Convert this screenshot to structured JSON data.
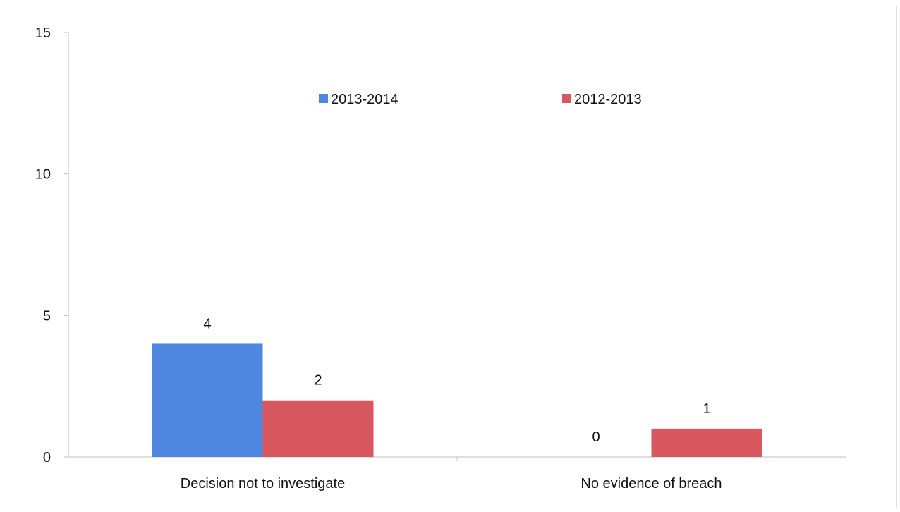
{
  "chart_data": {
    "type": "bar",
    "categories": [
      "Decision not to investigate",
      "No evidence of breach"
    ],
    "series": [
      {
        "name": "2013-2014",
        "values": [
          4,
          0
        ],
        "color": "#4f86df"
      },
      {
        "name": "2012-2013",
        "values": [
          2,
          1
        ],
        "color": "#d9575f"
      }
    ],
    "ylim": [
      0,
      15
    ],
    "yticks": [
      0,
      5,
      10,
      15
    ],
    "data_labels": true,
    "legend_position": "top-center",
    "grid": false
  }
}
